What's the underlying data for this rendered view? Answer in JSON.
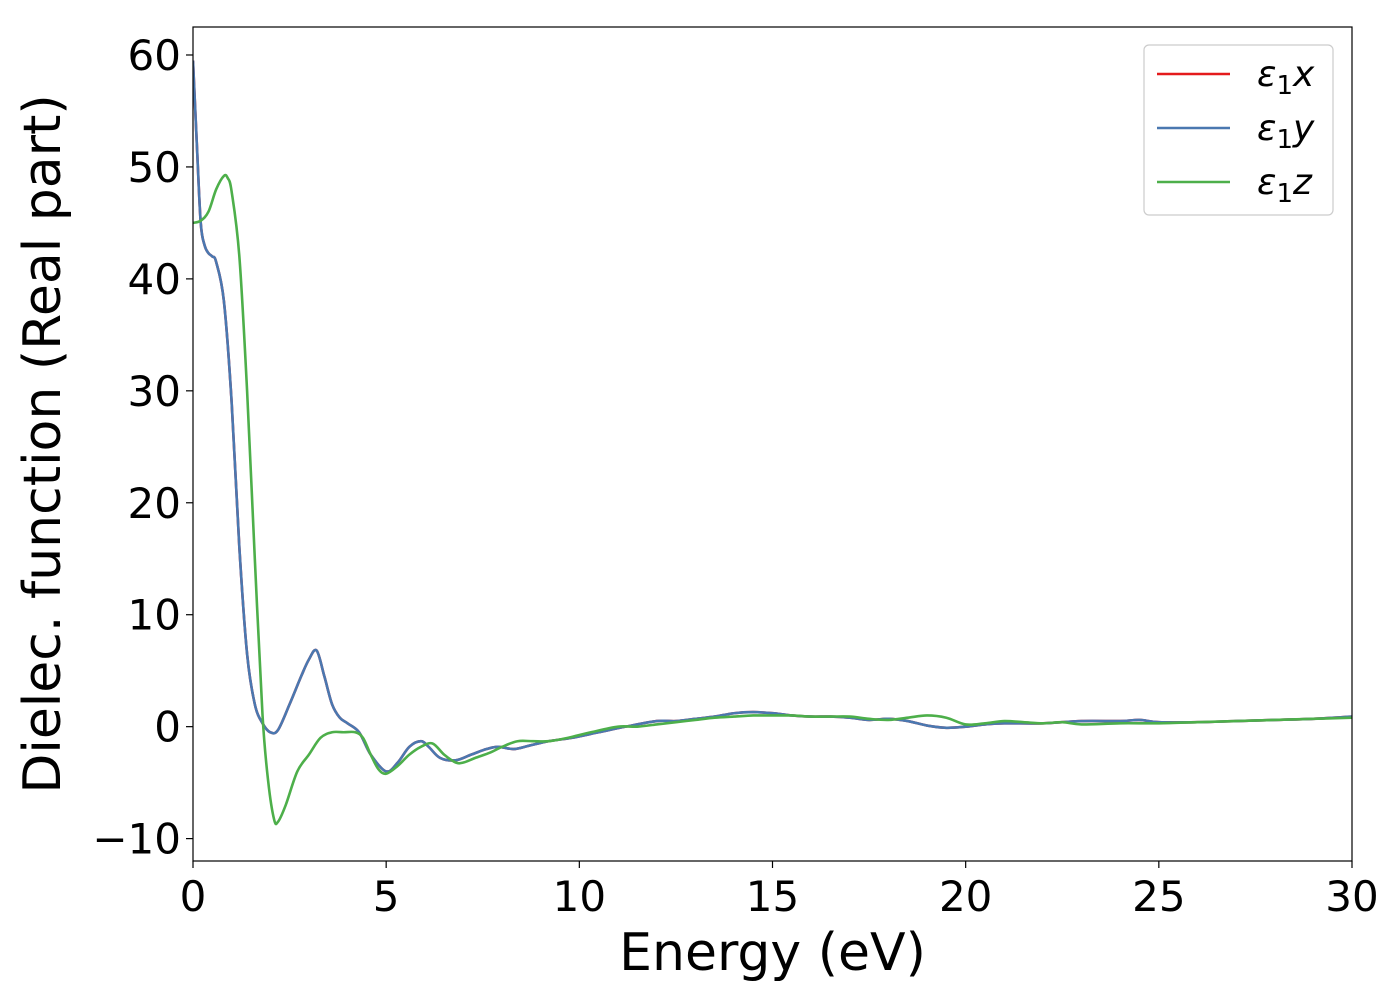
{
  "chart_data": {
    "type": "line",
    "xlabel": "Energy (eV)",
    "ylabel": "Dielec. function (Real part)",
    "xlim": [
      0,
      30
    ],
    "ylim": [
      -12,
      62.5
    ],
    "xticks": [
      0,
      5,
      10,
      15,
      20,
      25,
      30
    ],
    "xtick_labels": [
      "0",
      "5",
      "10",
      "15",
      "20",
      "25",
      "30"
    ],
    "yticks": [
      -10,
      0,
      10,
      20,
      30,
      40,
      50,
      60
    ],
    "ytick_labels": [
      "−10",
      "0",
      "10",
      "20",
      "30",
      "40",
      "50",
      "60"
    ],
    "grid": false,
    "legend_position": "top-right",
    "series": [
      {
        "name": "ε₁x",
        "legend_base": "ε",
        "legend_sub": "1",
        "legend_var": "x",
        "color": "#e41a1c",
        "x": [
          0,
          0.1,
          0.2,
          0.3,
          0.4,
          0.5,
          0.6,
          0.8,
          1.0,
          1.2,
          1.4,
          1.6,
          1.8,
          2.0,
          2.2,
          2.5,
          2.8,
          3.0,
          3.2,
          3.4,
          3.6,
          3.8,
          4.0,
          4.3,
          4.6,
          5.0,
          5.3,
          5.6,
          5.9,
          6.1,
          6.4,
          6.8,
          7.2,
          7.6,
          7.9,
          8.3,
          8.7,
          9.2,
          9.8,
          10.5,
          11.2,
          12.0,
          12.5,
          13.0,
          13.5,
          14.0,
          14.5,
          15.0,
          15.5,
          16.0,
          16.5,
          17.0,
          17.5,
          18.0,
          18.5,
          19.0,
          19.5,
          20.0,
          20.5,
          21.0,
          22.0,
          23.0,
          24.0,
          24.5,
          25.0,
          26.0,
          27.0,
          28.0,
          29.0,
          30.0
        ],
        "values": [
          59.5,
          52.0,
          45.0,
          43.0,
          42.3,
          42.0,
          41.5,
          38.0,
          29.0,
          16.0,
          6.5,
          2.0,
          0.3,
          -0.5,
          -0.3,
          2.0,
          4.5,
          6.0,
          6.8,
          4.5,
          2.0,
          0.8,
          0.3,
          -0.5,
          -2.5,
          -4.0,
          -3.2,
          -1.8,
          -1.3,
          -1.8,
          -2.8,
          -3.0,
          -2.5,
          -2.0,
          -1.8,
          -2.0,
          -1.7,
          -1.3,
          -1.0,
          -0.5,
          0.0,
          0.5,
          0.5,
          0.7,
          0.9,
          1.2,
          1.3,
          1.2,
          1.0,
          0.9,
          0.9,
          0.8,
          0.6,
          0.7,
          0.5,
          0.1,
          -0.1,
          0.0,
          0.2,
          0.3,
          0.3,
          0.5,
          0.5,
          0.6,
          0.4,
          0.4,
          0.5,
          0.6,
          0.7,
          0.9
        ]
      },
      {
        "name": "ε₁y",
        "legend_base": "ε",
        "legend_sub": "1",
        "legend_var": "y",
        "color": "#4a78b0",
        "x": [
          0,
          0.1,
          0.2,
          0.3,
          0.4,
          0.5,
          0.6,
          0.8,
          1.0,
          1.2,
          1.4,
          1.6,
          1.8,
          2.0,
          2.2,
          2.5,
          2.8,
          3.0,
          3.2,
          3.4,
          3.6,
          3.8,
          4.0,
          4.3,
          4.6,
          5.0,
          5.3,
          5.6,
          5.9,
          6.1,
          6.4,
          6.8,
          7.2,
          7.6,
          7.9,
          8.3,
          8.7,
          9.2,
          9.8,
          10.5,
          11.2,
          12.0,
          12.5,
          13.0,
          13.5,
          14.0,
          14.5,
          15.0,
          15.5,
          16.0,
          16.5,
          17.0,
          17.5,
          18.0,
          18.5,
          19.0,
          19.5,
          20.0,
          20.5,
          21.0,
          22.0,
          23.0,
          24.0,
          24.5,
          25.0,
          26.0,
          27.0,
          28.0,
          29.0,
          30.0
        ],
        "values": [
          59.5,
          52.0,
          45.0,
          43.0,
          42.3,
          42.0,
          41.5,
          38.0,
          29.0,
          16.0,
          6.5,
          2.0,
          0.3,
          -0.5,
          -0.3,
          2.0,
          4.5,
          6.0,
          6.8,
          4.5,
          2.0,
          0.8,
          0.3,
          -0.5,
          -2.5,
          -4.0,
          -3.2,
          -1.8,
          -1.3,
          -1.8,
          -2.8,
          -3.0,
          -2.5,
          -2.0,
          -1.8,
          -2.0,
          -1.7,
          -1.3,
          -1.0,
          -0.5,
          0.0,
          0.5,
          0.5,
          0.7,
          0.9,
          1.2,
          1.3,
          1.2,
          1.0,
          0.9,
          0.9,
          0.8,
          0.6,
          0.7,
          0.5,
          0.1,
          -0.1,
          0.0,
          0.2,
          0.3,
          0.3,
          0.5,
          0.5,
          0.6,
          0.4,
          0.4,
          0.5,
          0.6,
          0.7,
          0.9
        ]
      },
      {
        "name": "ε₁z",
        "legend_base": "ε",
        "legend_sub": "1",
        "legend_var": "z",
        "color": "#4daf4a",
        "x": [
          0,
          0.2,
          0.4,
          0.6,
          0.8,
          0.9,
          1.0,
          1.2,
          1.4,
          1.6,
          1.8,
          1.95,
          2.1,
          2.2,
          2.4,
          2.7,
          3.0,
          3.3,
          3.6,
          3.9,
          4.2,
          4.4,
          4.6,
          4.8,
          5.0,
          5.3,
          5.6,
          5.9,
          6.2,
          6.5,
          6.8,
          7.0,
          7.3,
          7.7,
          8.0,
          8.4,
          8.8,
          9.2,
          9.7,
          10.3,
          11.0,
          11.5,
          12.0,
          12.5,
          13.0,
          13.5,
          14.0,
          14.5,
          15.0,
          15.5,
          16.0,
          16.5,
          17.0,
          17.5,
          18.0,
          18.5,
          19.0,
          19.5,
          20.0,
          20.5,
          21.0,
          21.5,
          22.0,
          22.5,
          23.0,
          24.0,
          25.0,
          26.0,
          27.0,
          28.0,
          29.0,
          30.0
        ],
        "values": [
          45.0,
          45.2,
          46.0,
          48.0,
          49.2,
          49.0,
          47.8,
          42.0,
          30.0,
          15.0,
          1.0,
          -5.0,
          -8.3,
          -8.5,
          -7.0,
          -4.0,
          -2.5,
          -1.0,
          -0.5,
          -0.5,
          -0.5,
          -1.0,
          -2.5,
          -3.8,
          -4.2,
          -3.5,
          -2.5,
          -1.8,
          -1.5,
          -2.5,
          -3.2,
          -3.2,
          -2.8,
          -2.3,
          -1.8,
          -1.3,
          -1.3,
          -1.3,
          -1.0,
          -0.5,
          0.0,
          0.0,
          0.2,
          0.4,
          0.6,
          0.8,
          0.9,
          1.0,
          1.0,
          1.0,
          0.9,
          0.9,
          0.9,
          0.7,
          0.6,
          0.8,
          1.0,
          0.8,
          0.2,
          0.3,
          0.5,
          0.4,
          0.3,
          0.4,
          0.2,
          0.3,
          0.3,
          0.4,
          0.5,
          0.6,
          0.7,
          0.8
        ]
      }
    ]
  }
}
